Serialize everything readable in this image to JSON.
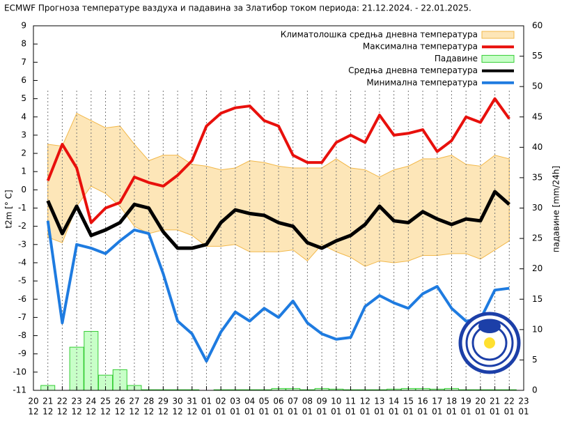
{
  "chart_data": {
    "type": "combo",
    "title": "ECMWF Прогноза температуре ваздуха и падавина за Златибор током периода: 21.12.2024. - 22.01.2025.",
    "y_label": "t2m [° C]",
    "y2_label": "падавине [mm/24h]",
    "categories": [
      [
        "20",
        "12"
      ],
      [
        "21",
        "12"
      ],
      [
        "22",
        "12"
      ],
      [
        "23",
        "12"
      ],
      [
        "24",
        "12"
      ],
      [
        "25",
        "12"
      ],
      [
        "26",
        "12"
      ],
      [
        "27",
        "12"
      ],
      [
        "28",
        "12"
      ],
      [
        "29",
        "12"
      ],
      [
        "30",
        "12"
      ],
      [
        "31",
        "12"
      ],
      [
        "01",
        "01"
      ],
      [
        "02",
        "01"
      ],
      [
        "03",
        "01"
      ],
      [
        "04",
        "01"
      ],
      [
        "05",
        "01"
      ],
      [
        "06",
        "01"
      ],
      [
        "07",
        "01"
      ],
      [
        "08",
        "01"
      ],
      [
        "09",
        "01"
      ],
      [
        "10",
        "01"
      ],
      [
        "11",
        "01"
      ],
      [
        "12",
        "01"
      ],
      [
        "13",
        "01"
      ],
      [
        "14",
        "01"
      ],
      [
        "15",
        "01"
      ],
      [
        "16",
        "01"
      ],
      [
        "17",
        "01"
      ],
      [
        "18",
        "01"
      ],
      [
        "19",
        "01"
      ],
      [
        "20",
        "01"
      ],
      [
        "21",
        "01"
      ],
      [
        "22",
        "01"
      ],
      [
        "23",
        "01"
      ]
    ],
    "ylim": [
      -11,
      9
    ],
    "yticks": [
      -11,
      -10,
      -9,
      -8,
      -7,
      -6,
      -5,
      -4,
      -3,
      -2,
      -1,
      0,
      1,
      2,
      3,
      4,
      5,
      6,
      7,
      8,
      9
    ],
    "y2lim": [
      0,
      60
    ],
    "y2ticks": [
      0,
      5,
      10,
      15,
      20,
      25,
      30,
      35,
      40,
      45,
      50,
      55,
      60
    ],
    "grid": true,
    "legend": "top-right",
    "series": [
      {
        "name": "Климатолошка средња дневна температура",
        "type": "band",
        "color": "#fde6b8",
        "edge": "#f2b84a",
        "upper": [
          null,
          2.5,
          2.4,
          4.2,
          3.8,
          3.4,
          3.5,
          2.5,
          1.6,
          1.9,
          1.9,
          1.4,
          1.3,
          1.1,
          1.2,
          1.6,
          1.5,
          1.3,
          1.2,
          1.2,
          1.2,
          1.7,
          1.2,
          1.1,
          0.7,
          1.1,
          1.3,
          1.7,
          1.7,
          1.9,
          1.4,
          1.3,
          1.9,
          1.7,
          null
        ],
        "lower": [
          null,
          -2.6,
          -2.9,
          -0.9,
          0.2,
          -0.2,
          -0.9,
          -2.0,
          -2.4,
          -2.2,
          -2.2,
          -2.5,
          -3.1,
          -3.1,
          -3.0,
          -3.4,
          -3.4,
          -3.4,
          -3.3,
          -3.9,
          -3.0,
          -3.4,
          -3.7,
          -4.2,
          -3.9,
          -4.0,
          -3.9,
          -3.6,
          -3.6,
          -3.5,
          -3.5,
          -3.8,
          -3.3,
          -2.8,
          null
        ]
      },
      {
        "name": "Максимална температура",
        "type": "line",
        "color": "#e8100c",
        "values": [
          null,
          0.5,
          2.5,
          1.2,
          -1.8,
          -1.0,
          -0.7,
          0.7,
          0.4,
          0.2,
          0.8,
          1.6,
          3.5,
          4.2,
          4.5,
          4.6,
          3.8,
          3.5,
          1.9,
          1.5,
          1.5,
          2.6,
          3.0,
          2.6,
          4.1,
          3.0,
          3.1,
          3.3,
          2.1,
          2.7,
          4.0,
          3.7,
          5.0,
          3.9,
          null
        ]
      },
      {
        "name": "Падавине",
        "type": "bar",
        "axis": "y2",
        "color": "#c8ffc8",
        "edge": "#33cc33",
        "values": [
          null,
          0.8,
          0,
          7.1,
          9.7,
          2.5,
          3.4,
          0.8,
          0.1,
          0.1,
          0.1,
          0.1,
          0,
          0.1,
          0.1,
          0.1,
          0.1,
          0.3,
          0.3,
          0.1,
          0.3,
          0.2,
          0.1,
          0.1,
          0.1,
          0.2,
          0.3,
          0.3,
          0.2,
          0.3,
          0.1,
          0.1,
          0.1,
          0.1,
          null
        ]
      },
      {
        "name": "Средња дневна температура",
        "type": "line",
        "color": "#000000",
        "values": [
          null,
          -0.6,
          -2.4,
          -0.9,
          -2.5,
          -2.2,
          -1.8,
          -0.8,
          -1.0,
          -2.3,
          -3.2,
          -3.2,
          -3.0,
          -1.8,
          -1.1,
          -1.3,
          -1.4,
          -1.8,
          -2.0,
          -2.9,
          -3.2,
          -2.8,
          -2.5,
          -1.9,
          -0.9,
          -1.7,
          -1.8,
          -1.2,
          -1.6,
          -1.9,
          -1.6,
          -1.7,
          -0.1,
          -0.8,
          null
        ]
      },
      {
        "name": "Минимална температура",
        "type": "line",
        "color": "#1e7be0",
        "values": [
          null,
          -1.7,
          -7.3,
          -3.0,
          -3.2,
          -3.5,
          -2.8,
          -2.2,
          -2.4,
          -4.6,
          -7.2,
          -7.9,
          -9.4,
          -7.8,
          -6.7,
          -7.2,
          -6.5,
          -7.0,
          -6.1,
          -7.3,
          -7.9,
          -8.2,
          -8.1,
          -6.4,
          -5.8,
          -6.2,
          -6.5,
          -5.7,
          -5.3,
          -6.5,
          -7.2,
          -7.1,
          -5.5,
          -5.4,
          null
        ]
      }
    ]
  }
}
